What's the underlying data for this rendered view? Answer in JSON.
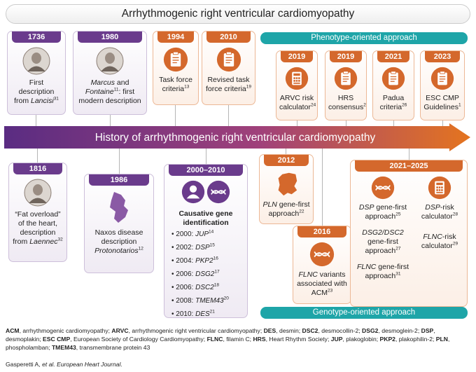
{
  "header": {
    "title": "Arrhythmogenic right ventricular cardiomyopathy"
  },
  "timeline": {
    "label": "History of arrhythmogenic right ventricular cardiomyopathy"
  },
  "phenotype": {
    "title": "Phenotype-oriented approach",
    "items": [
      {
        "year": "2019",
        "text": [
          "ARVC risk calculator",
          "24"
        ]
      },
      {
        "year": "2019",
        "text": [
          "HRS consensus",
          "2"
        ]
      },
      {
        "year": "2021",
        "text": [
          "Padua criteria",
          "26"
        ]
      },
      {
        "year": "2023",
        "text": [
          "ESC CMP Guidelines",
          "1"
        ]
      }
    ]
  },
  "genotype": {
    "title": "Genotype-oriented approach"
  },
  "events": {
    "e1736": {
      "year": "1736",
      "text": [
        "First description from ",
        "Lancisi",
        "31"
      ]
    },
    "e1980": {
      "year": "1980",
      "text": [
        "Marcus",
        " and ",
        "Fontaine",
        "11",
        ": first modern description"
      ]
    },
    "e1994": {
      "year": "1994",
      "text": [
        "Task force criteria",
        "13"
      ]
    },
    "e2010": {
      "year": "2010",
      "text": [
        "Revised task force criteria",
        "19"
      ]
    },
    "e1816": {
      "year": "1816",
      "text": [
        "“Fat overload” of the heart, description from ",
        "Laennec",
        "32"
      ]
    },
    "e1986": {
      "year": "1986",
      "text": [
        "Naxos disease description ",
        "Protonotarios",
        "12"
      ]
    },
    "e2000": {
      "year": "2000–2010",
      "heading": "Causative gene identification",
      "genes": [
        [
          "2000: ",
          "JUP",
          "14"
        ],
        [
          "2002: ",
          "DSP",
          "15"
        ],
        [
          "2004: ",
          "PKP2",
          "16"
        ],
        [
          "2006: ",
          "DSG2",
          "17"
        ],
        [
          "2006: ",
          "DSC2",
          "18"
        ],
        [
          "2008: ",
          "TMEM43",
          "20"
        ],
        [
          "2010: ",
          "DES",
          "21"
        ]
      ]
    },
    "e2012": {
      "year": "2012",
      "text": [
        "PLN",
        " gene-first approach",
        "22"
      ]
    },
    "e2016": {
      "year": "2016",
      "text": [
        "FLNC",
        " variants associated with ACM",
        "23"
      ]
    },
    "e2021": {
      "year": "2021–2025",
      "items": [
        [
          "DSP",
          " gene-first approach",
          "25"
        ],
        [
          "DSP",
          "-risk calculator",
          "28"
        ],
        [
          "DSG2/DSC2",
          " gene-first approach",
          "27"
        ],
        [
          "FLNC",
          "-risk calculator",
          "29"
        ],
        [
          "FLNC",
          " gene-first approach",
          "31"
        ]
      ]
    }
  },
  "footer": {
    "abbreviations": [
      [
        "ACM",
        ", arrhythmogenic cardiomyopathy; "
      ],
      [
        "ARVC",
        ", arrhythmogenic right ventricular cardiomyopathy; "
      ],
      [
        "DES",
        ", desmin; "
      ],
      [
        "DSC2",
        ", desmocollin-2; "
      ],
      [
        "DSG2",
        ", desmoglein-2; "
      ],
      [
        "DSP",
        ", desmoplakin; "
      ],
      [
        "ESC CMP",
        ", European Society of Cardiology Cardiomyopathy; "
      ],
      [
        "FLNC",
        ", filamin C; "
      ],
      [
        "HRS",
        ", Heart Rhythm Society; "
      ],
      [
        "JUP",
        ", plakoglobin; "
      ],
      [
        "PKP2",
        ", plakophilin-2; "
      ],
      [
        "PLN",
        ", phospholamban; "
      ],
      [
        "TMEM43",
        ", transmembrane protein 43"
      ]
    ],
    "citation": [
      "Gasperetti A, ",
      "et al.",
      "",
      " European Heart Journal",
      "."
    ]
  }
}
